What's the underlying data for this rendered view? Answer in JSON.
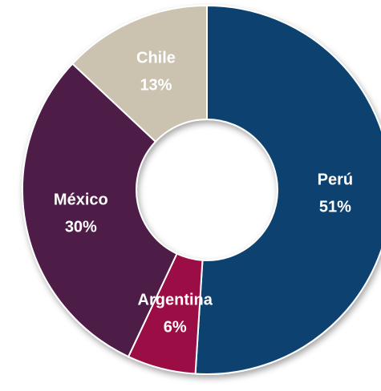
{
  "chart_data": {
    "type": "donut",
    "categories": [
      "Perú",
      "Argentina",
      "México",
      "Chile"
    ],
    "values": [
      51,
      6,
      30,
      13
    ],
    "value_labels": [
      "51%",
      "6%",
      "30%",
      "13%"
    ],
    "colors": [
      "#0b436f",
      "#9a0a44",
      "#4d1b47",
      "#cbc2af"
    ]
  }
}
